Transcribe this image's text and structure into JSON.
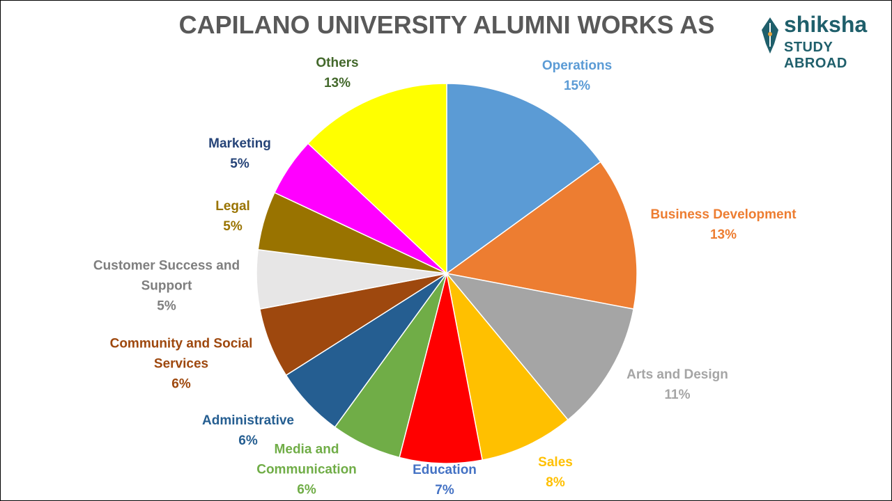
{
  "chart_data": {
    "type": "pie",
    "title": "CAPILANO UNIVERSITY ALUMNI WORKS AS",
    "categories": [
      "Operations",
      "Business Development",
      "Arts and Design",
      "Sales",
      "Education",
      "Media and Communication",
      "Administrative",
      "Community and Social Services",
      "Customer Success and Support",
      "Legal",
      "Marketing",
      "Others"
    ],
    "values": [
      15,
      13,
      11,
      8,
      7,
      6,
      6,
      6,
      5,
      5,
      5,
      13
    ],
    "value_labels": [
      "15%",
      "13%",
      "11%",
      "8%",
      "7%",
      "6%",
      "6%",
      "6%",
      "5%",
      "5%",
      "5%",
      "13%"
    ],
    "colors": [
      "#5b9bd5",
      "#ed7d31",
      "#a5a5a5",
      "#ffc000",
      "#ff0000",
      "#70ad47",
      "#255e91",
      "#9e480e",
      "#e7e6e6",
      "#997300",
      "#ff00ff",
      "#ffff00"
    ],
    "label_colors": [
      "#5b9bd5",
      "#ed7d31",
      "#a5a5a5",
      "#ffc000",
      "#4472c4",
      "#70ad47",
      "#255e91",
      "#9e480e",
      "#7f7f7f",
      "#997300",
      "#264478",
      "#43682b"
    ]
  },
  "logo": {
    "name": "shiksha",
    "tagline": "STUDY ABROAD"
  }
}
